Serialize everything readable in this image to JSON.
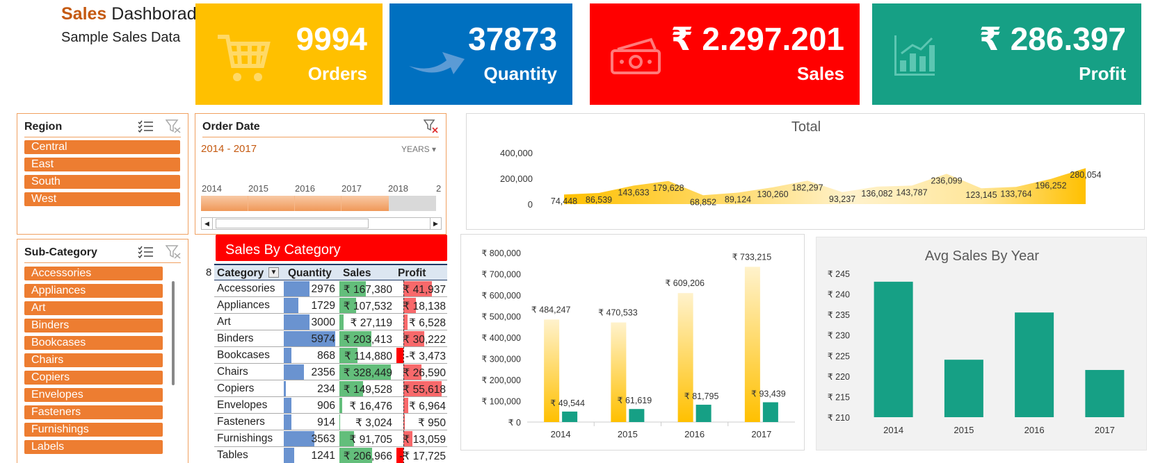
{
  "header": {
    "title_highlight": "Sales",
    "title_rest": "Dashborad",
    "subtitle": "Sample Sales Data"
  },
  "kpis": [
    {
      "value": "9994",
      "label": "Orders",
      "color": "#ffc000",
      "icon": "shopping-cart-icon"
    },
    {
      "value": "37873",
      "label": "Quantity",
      "color": "#0070c0",
      "icon": "arrow-icon"
    },
    {
      "value": "₹ 2.297.201",
      "label": "Sales",
      "color": "#ff0000",
      "icon": "money-icon"
    },
    {
      "value": "₹ 286.397",
      "label": "Profit",
      "color": "#16a085",
      "icon": "bar-chart-icon"
    }
  ],
  "region_slicer": {
    "title": "Region",
    "items": [
      "Central",
      "East",
      "South",
      "West"
    ]
  },
  "order_date": {
    "title": "Order Date",
    "range": "2014 - 2017",
    "level": "YEARS",
    "years": [
      "2014",
      "2015",
      "2016",
      "2017",
      "2018",
      "2"
    ]
  },
  "subcategory_slicer": {
    "title": "Sub-Category",
    "items": [
      "Accessories",
      "Appliances",
      "Art",
      "Binders",
      "Bookcases",
      "Chairs",
      "Copiers",
      "Envelopes",
      "Fasteners",
      "Furnishings",
      "Labels"
    ]
  },
  "sales_by_category": {
    "title": "Sales By Category",
    "row_marker": "8",
    "columns": [
      "Category",
      "Quantity",
      "Sales",
      "Profit"
    ],
    "rows": [
      {
        "category": "Accessories",
        "quantity": "2976",
        "sales": "₹ 167,380",
        "profit": "₹ 41,937"
      },
      {
        "category": "Appliances",
        "quantity": "1729",
        "sales": "₹ 107,532",
        "profit": "₹ 18,138"
      },
      {
        "category": "Art",
        "quantity": "3000",
        "sales": "₹ 27,119",
        "profit": "₹ 6,528"
      },
      {
        "category": "Binders",
        "quantity": "5974",
        "sales": "₹ 203,413",
        "profit": "₹ 30,222"
      },
      {
        "category": "Bookcases",
        "quantity": "868",
        "sales": "₹ 114,880",
        "profit": "-₹ 3,473"
      },
      {
        "category": "Chairs",
        "quantity": "2356",
        "sales": "₹ 328,449",
        "profit": "₹ 26,590"
      },
      {
        "category": "Copiers",
        "quantity": "234",
        "sales": "₹ 149,528",
        "profit": "₹ 55,618"
      },
      {
        "category": "Envelopes",
        "quantity": "906",
        "sales": "₹ 16,476",
        "profit": "₹ 6,964"
      },
      {
        "category": "Fasteners",
        "quantity": "914",
        "sales": "₹ 3,024",
        "profit": "₹ 950"
      },
      {
        "category": "Furnishings",
        "quantity": "3563",
        "sales": "₹ 91,705",
        "profit": "₹ 13,059"
      },
      {
        "category": "Tables",
        "quantity": "1241",
        "sales": "₹ 206,966",
        "profit": "-₹ 17,725"
      }
    ]
  },
  "chart_data": [
    {
      "type": "area",
      "title": "Total",
      "yticks": [
        "400,000",
        "200,000",
        "0"
      ],
      "ylim": [
        0,
        400000
      ],
      "values": [
        74448,
        86539,
        143633,
        179628,
        68852,
        89124,
        130260,
        182297,
        93237,
        136082,
        143787,
        236099,
        123145,
        133764,
        196252,
        280054
      ],
      "labels": [
        "74,448",
        "86,539",
        "143,633",
        "179,628",
        "68,852",
        "89,124",
        "130,260",
        "182,297",
        "93,237",
        "136,082",
        "143,787",
        "236,099",
        "123,145",
        "133,764",
        "196,252",
        "280,054"
      ],
      "color": "#ffc000"
    },
    {
      "type": "bar",
      "categories": [
        "2014",
        "2015",
        "2016",
        "2017"
      ],
      "ylim": [
        0,
        800000
      ],
      "yticks": [
        "₹ 800,000",
        "₹ 700,000",
        "₹ 600,000",
        "₹ 500,000",
        "₹ 400,000",
        "₹ 300,000",
        "₹ 200,000",
        "₹ 100,000",
        "₹ 0"
      ],
      "series": [
        {
          "values": [
            484247,
            470533,
            609206,
            733215
          ],
          "labels": [
            "₹ 484,247",
            "₹ 470,533",
            "₹ 609,206",
            "₹ 733,215"
          ],
          "color": "#ffc000"
        },
        {
          "values": [
            49544,
            61619,
            81795,
            93439
          ],
          "labels": [
            "₹ 49,544",
            "₹ 61,619",
            "₹ 81,795",
            "₹ 93,439"
          ],
          "color": "#16a085"
        }
      ]
    },
    {
      "type": "bar",
      "title": "Avg Sales By Year",
      "categories": [
        "2014",
        "2015",
        "2016",
        "2017"
      ],
      "values": [
        243,
        224,
        235.5,
        221.5
      ],
      "ylim": [
        210,
        245
      ],
      "yticks": [
        "₹ 245",
        "₹ 240",
        "₹ 235",
        "₹ 230",
        "₹ 225",
        "₹ 220",
        "₹ 215",
        "₹ 210"
      ],
      "color": "#16a085"
    }
  ]
}
